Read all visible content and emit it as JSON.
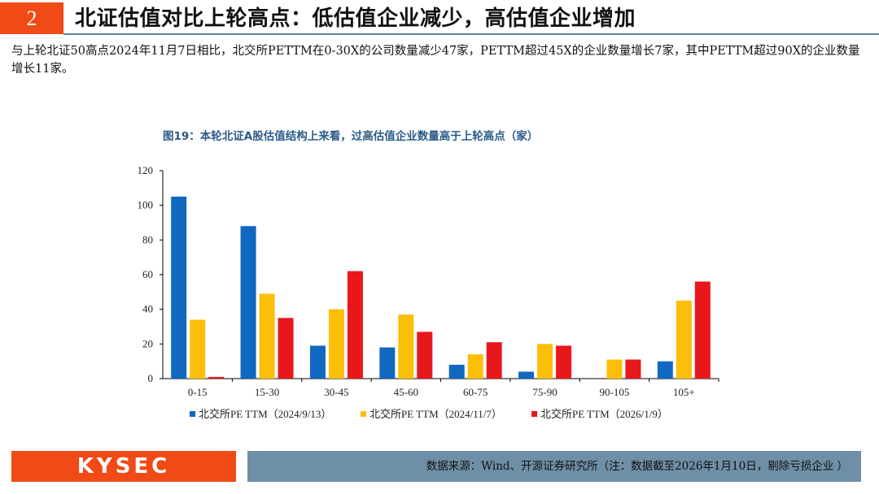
{
  "header": {
    "section_number": "2",
    "title": "北证估值对比上轮高点：低估值企业减少，高估值企业增加"
  },
  "intro_text": "与上轮北证50高点2024年11月7日相比，北交所PETTM在0-30X的公司数量减少47家，PETTM超过45X的企业数量增长7家，其中PETTM超过90X的企业数量增长11家。",
  "chart_data": {
    "type": "bar",
    "title": "图19：本轮北证A股估值结构上来看，过高估值企业数量高于上轮高点（家）",
    "categories": [
      "0-15",
      "15-30",
      "30-45",
      "45-60",
      "60-75",
      "75-90",
      "90-105",
      "105+"
    ],
    "ylim": [
      0,
      120
    ],
    "yticks": [
      0,
      20,
      40,
      60,
      80,
      100,
      120
    ],
    "grid": false,
    "legend_position": "bottom",
    "series": [
      {
        "name": "北交所PE TTM（2024/9/13）",
        "color": "#1068c0",
        "values": [
          105,
          88,
          19,
          18,
          8,
          4,
          0,
          10
        ]
      },
      {
        "name": "北交所PE TTM（2024/11/7）",
        "color": "#fbbf0a",
        "values": [
          34,
          49,
          40,
          37,
          14,
          20,
          11,
          45
        ]
      },
      {
        "name": "北交所PE TTM（2026/1/9）",
        "color": "#e8171b",
        "values": [
          1,
          35,
          62,
          27,
          21,
          19,
          11,
          56
        ]
      }
    ]
  },
  "footer": {
    "logo": "KYSEC",
    "source": "数据来源：Wind、开源证券研究所（注：数据截至2026年1月10日，剔除亏损企业 ）"
  }
}
